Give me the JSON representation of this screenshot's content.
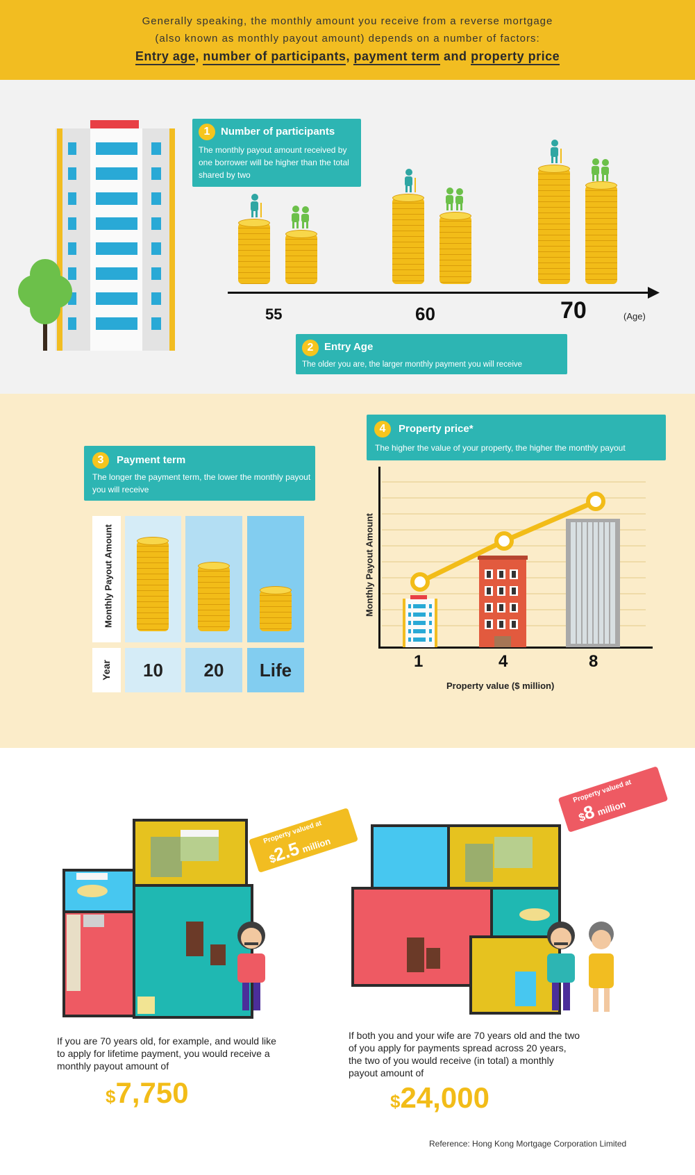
{
  "header": {
    "line1": "Generally speaking, the monthly amount you receive from a reverse mortgage",
    "line2": "(also known as monthly payout amount) depends on a number of factors:",
    "factors": [
      "Entry age",
      "number of participants",
      "payment term",
      "property price"
    ],
    "sep1": ",",
    "sep2": ",",
    "sep3": "and"
  },
  "participants": {
    "number": "1",
    "title": "Number of participants",
    "desc": "The monthly payout amount received by one borrower will be higher than the total shared by two"
  },
  "entry_age": {
    "number": "2",
    "title": "Entry Age",
    "desc": "The older you are, the larger monthly payment you will receive",
    "ages": [
      "55",
      "60",
      "70"
    ],
    "axis_unit": "(Age)"
  },
  "payment_term": {
    "number": "3",
    "title": "Payment term",
    "desc": "The longer the payment term, the lower the monthly payout you will receive",
    "y_label": "Monthly Payout Amount",
    "row_label": "Year",
    "terms": [
      "10",
      "20",
      "Life"
    ]
  },
  "property_price": {
    "number": "4",
    "title": "Property price*",
    "desc": "The higher the value of your property, the higher the monthly payout",
    "y_label": "Monthly Payout Amount",
    "x_label": "Property value ($ million)",
    "values": [
      "1",
      "4",
      "8"
    ]
  },
  "example1": {
    "tag_small": "Property valued at",
    "tag_currency": "$",
    "tag_amount": "2.5",
    "tag_unit": "million",
    "text": "If you are 70 years old, for example, and would like to apply for lifetime payment, you would receive a monthly payout amount of",
    "currency": "$",
    "amount": "7,750"
  },
  "example2": {
    "tag_small": "Property valued at",
    "tag_currency": "$",
    "tag_amount": "8",
    "tag_unit": "million",
    "text": "If both you and your wife are 70 years old and the two of you apply for payments spread across 20 years, the two of you would receive (in total) a monthly payout amount of",
    "currency": "$",
    "amount": "24,000"
  },
  "reference": "Reference: Hong Kong Mortgage Corporation Limited",
  "colors": {
    "yellow": "#f2bd21",
    "teal": "#2db5b3",
    "red": "#ee5a63",
    "coin": "#f2bc18"
  }
}
